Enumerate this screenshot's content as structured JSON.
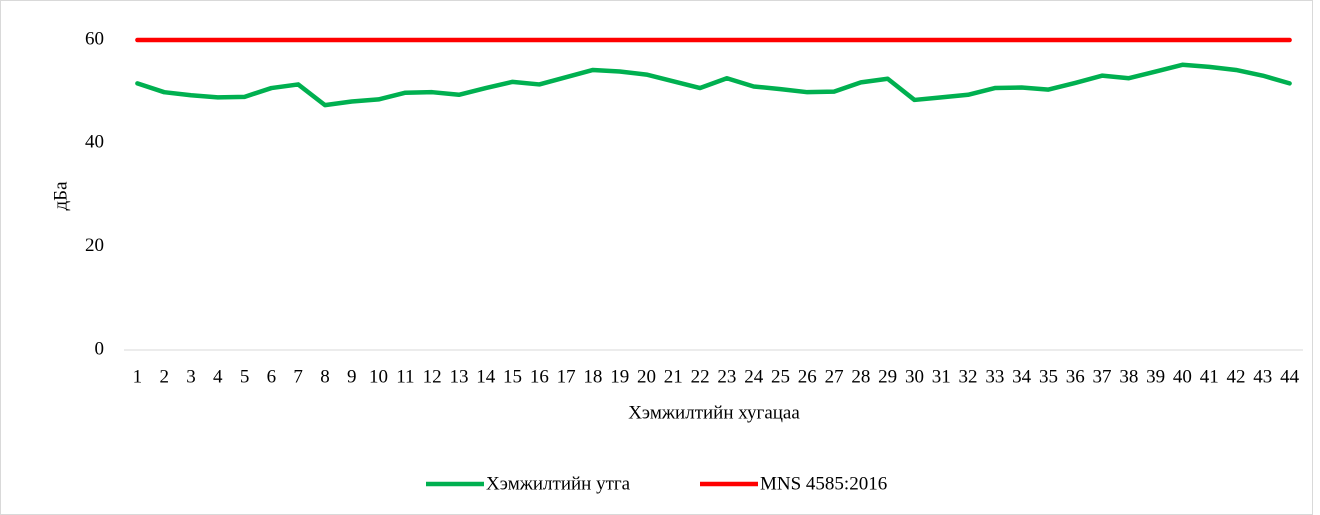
{
  "chart_data": {
    "type": "line",
    "y_label": "дБа",
    "x_label": "Хэмжилтийн хугацаа",
    "categories": [
      "1",
      "2",
      "3",
      "4",
      "5",
      "6",
      "7",
      "8",
      "9",
      "10",
      "11",
      "12",
      "13",
      "14",
      "15",
      "16",
      "17",
      "18",
      "19",
      "20",
      "21",
      "22",
      "23",
      "24",
      "25",
      "26",
      "27",
      "28",
      "29",
      "30",
      "31",
      "32",
      "33",
      "34",
      "35",
      "36",
      "37",
      "38",
      "39",
      "40",
      "41",
      "42",
      "43",
      "44"
    ],
    "series": [
      {
        "name": "Хэмжилтийн утга",
        "color": "#00b050",
        "values": [
          51.6,
          49.9,
          49.3,
          48.9,
          49.0,
          50.7,
          51.4,
          47.4,
          48.1,
          48.5,
          49.8,
          49.9,
          49.4,
          50.7,
          51.9,
          51.4,
          52.8,
          54.2,
          53.9,
          53.3,
          52.0,
          50.7,
          52.6,
          51.0,
          50.5,
          49.9,
          50.0,
          51.8,
          52.5,
          48.4,
          48.9,
          49.4,
          50.7,
          50.8,
          50.4,
          51.7,
          53.1,
          52.6,
          53.9,
          55.2,
          54.8,
          54.2,
          53.1,
          51.6
        ]
      },
      {
        "name": "MNS 4585:2016",
        "color": "#ff0000",
        "values": [
          60,
          60,
          60,
          60,
          60,
          60,
          60,
          60,
          60,
          60,
          60,
          60,
          60,
          60,
          60,
          60,
          60,
          60,
          60,
          60,
          60,
          60,
          60,
          60,
          60,
          60,
          60,
          60,
          60,
          60,
          60,
          60,
          60,
          60,
          60,
          60,
          60,
          60,
          60,
          60,
          60,
          60,
          60,
          60
        ]
      }
    ],
    "ylim": [
      0,
      60
    ],
    "yticks": [
      0,
      20,
      40,
      60
    ],
    "grid": false,
    "legend": "bottom"
  }
}
